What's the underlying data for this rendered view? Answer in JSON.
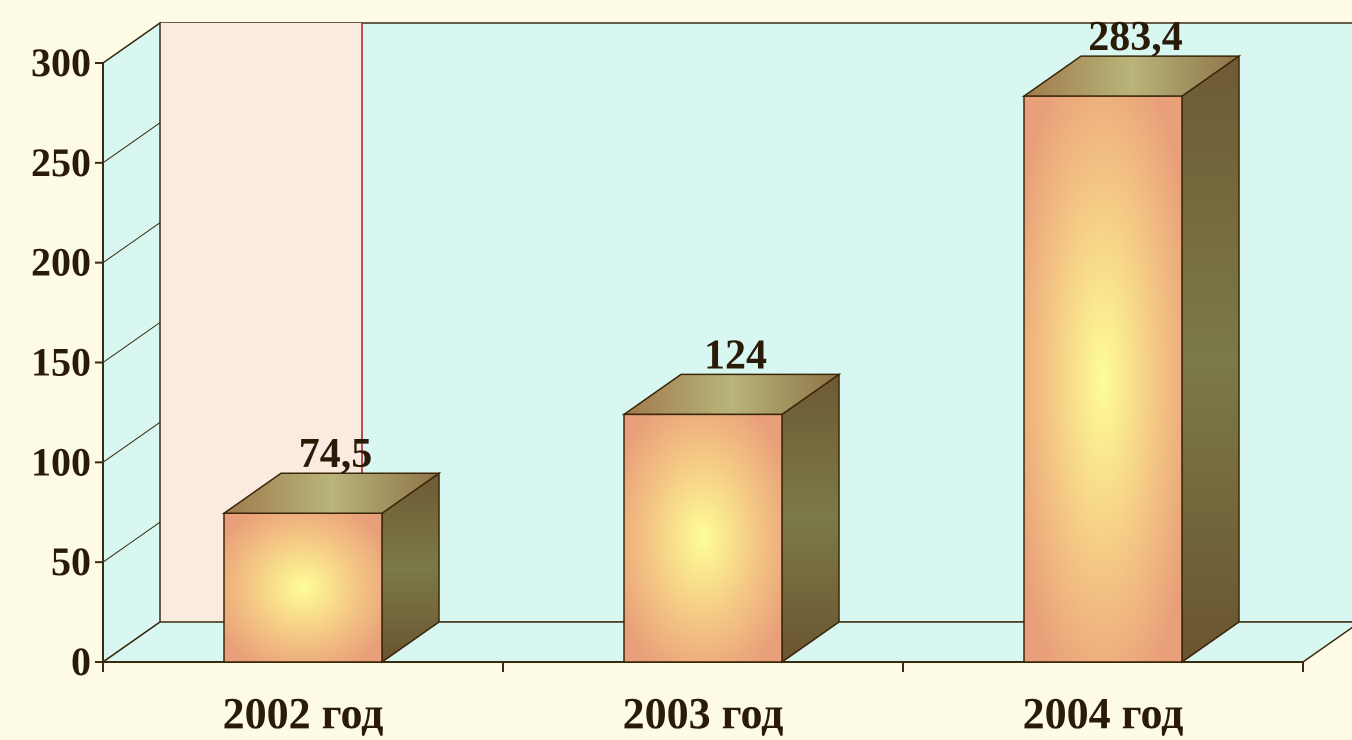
{
  "chart_data": {
    "type": "bar",
    "title": "",
    "xlabel": "",
    "ylabel": "",
    "categories": [
      "2002 год",
      "2003 год",
      "2004 год"
    ],
    "values": [
      74.5,
      124,
      283.4
    ],
    "value_labels": [
      "74,5",
      "124",
      "283,4"
    ],
    "ylim": [
      0,
      300
    ],
    "yticks": [
      0,
      50,
      100,
      150,
      200,
      250,
      300
    ],
    "grid": false,
    "legend": "none",
    "style": "3d-column",
    "colors": {
      "page_background": "#fdfbe6",
      "back_wall": "#d8f7f0",
      "left_wall": "#faeadf",
      "wall_divider": "#b01818",
      "axis": "#3a2a10",
      "bar_front_edge": "#e9a07a",
      "bar_front_center": "#fefe96",
      "bar_top": "#b0b078",
      "bar_side": "#7a6a3c",
      "label_text": "#2a1a08"
    }
  }
}
